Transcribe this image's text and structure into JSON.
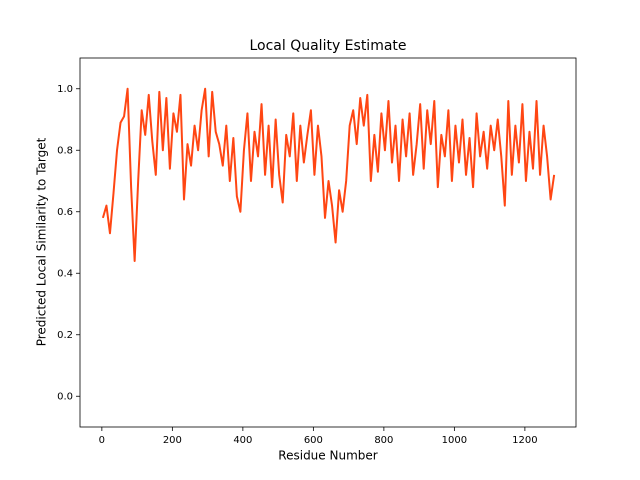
{
  "chart_data": {
    "type": "line",
    "title": "Local Quality Estimate",
    "x_label": "Residue Number",
    "y_label": "Predicted Local Similarity to Target",
    "x": [
      3,
      13,
      23,
      33,
      43,
      53,
      63,
      73,
      83,
      93,
      103,
      113,
      123,
      133,
      143,
      153,
      163,
      173,
      183,
      193,
      203,
      213,
      223,
      233,
      243,
      253,
      263,
      273,
      283,
      293,
      303,
      313,
      323,
      333,
      343,
      353,
      363,
      373,
      383,
      393,
      403,
      413,
      423,
      433,
      443,
      453,
      463,
      473,
      483,
      493,
      503,
      513,
      523,
      533,
      543,
      553,
      563,
      573,
      583,
      593,
      603,
      613,
      623,
      633,
      643,
      653,
      663,
      673,
      683,
      693,
      703,
      713,
      723,
      733,
      743,
      753,
      763,
      773,
      783,
      793,
      803,
      813,
      823,
      833,
      843,
      853,
      863,
      873,
      883,
      893,
      903,
      913,
      923,
      933,
      943,
      953,
      963,
      973,
      983,
      993,
      1003,
      1013,
      1023,
      1033,
      1043,
      1053,
      1063,
      1073,
      1083,
      1093,
      1103,
      1113,
      1123,
      1133,
      1143,
      1153,
      1163,
      1173,
      1183,
      1193,
      1203,
      1213,
      1223,
      1233,
      1243,
      1253,
      1263,
      1273,
      1283
    ],
    "series": [
      {
        "color": "#ff4613",
        "values": [
          0.58,
          0.62,
          0.53,
          0.66,
          0.8,
          0.89,
          0.91,
          1.0,
          0.68,
          0.44,
          0.7,
          0.93,
          0.85,
          0.98,
          0.83,
          0.72,
          0.99,
          0.8,
          0.97,
          0.74,
          0.92,
          0.86,
          0.98,
          0.64,
          0.82,
          0.75,
          0.88,
          0.8,
          0.93,
          1.0,
          0.78,
          0.99,
          0.86,
          0.82,
          0.75,
          0.88,
          0.7,
          0.84,
          0.65,
          0.6,
          0.8,
          0.92,
          0.7,
          0.86,
          0.78,
          0.95,
          0.72,
          0.88,
          0.68,
          0.9,
          0.72,
          0.63,
          0.85,
          0.78,
          0.92,
          0.7,
          0.88,
          0.76,
          0.85,
          0.93,
          0.72,
          0.88,
          0.78,
          0.58,
          0.7,
          0.62,
          0.5,
          0.67,
          0.6,
          0.7,
          0.88,
          0.93,
          0.82,
          0.97,
          0.88,
          0.98,
          0.7,
          0.85,
          0.73,
          0.92,
          0.8,
          0.96,
          0.76,
          0.88,
          0.7,
          0.9,
          0.78,
          0.92,
          0.72,
          0.82,
          0.95,
          0.74,
          0.93,
          0.82,
          0.96,
          0.68,
          0.85,
          0.78,
          0.93,
          0.7,
          0.88,
          0.76,
          0.9,
          0.72,
          0.84,
          0.68,
          0.92,
          0.78,
          0.86,
          0.74,
          0.88,
          0.8,
          0.9,
          0.78,
          0.62,
          0.96,
          0.72,
          0.88,
          0.76,
          0.95,
          0.7,
          0.86,
          0.74,
          0.96,
          0.72,
          0.88,
          0.78,
          0.64,
          0.72
        ]
      }
    ],
    "xlim": [
      -62,
      1345
    ],
    "ylim": [
      -0.1,
      1.1
    ],
    "xticks": [
      0,
      200,
      400,
      600,
      800,
      1000,
      1200
    ],
    "yticks": [
      {
        "value": 0,
        "label": "0.0"
      },
      0.2,
      0.4,
      0.6,
      0.8,
      {
        "value": 1,
        "label": "1.0"
      }
    ]
  }
}
